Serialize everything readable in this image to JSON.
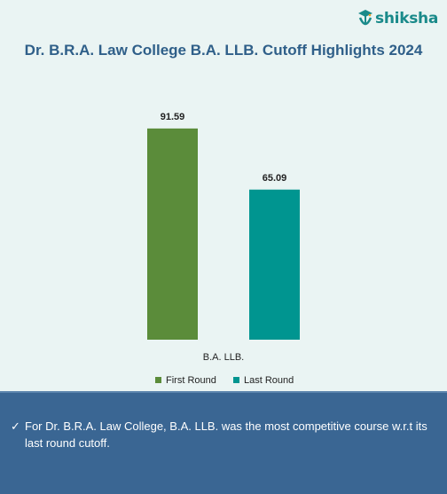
{
  "logo": {
    "text": "shiksha"
  },
  "chart_data": {
    "type": "bar",
    "title": "Dr. B.R.A. Law College B.A. LLB. Cutoff Highlights 2024",
    "categories": [
      "B.A. LLB."
    ],
    "series": [
      {
        "name": "First Round",
        "values": [
          91.59
        ],
        "color": "#5b8c3a"
      },
      {
        "name": "Last Round",
        "values": [
          65.09
        ],
        "color": "#009590"
      }
    ],
    "xlabel": "",
    "ylabel": "",
    "ylim": [
      0,
      100
    ],
    "grid": false,
    "legend": "bottom",
    "data_labels": true
  },
  "note": {
    "icon": "check-icon",
    "text": "For Dr. B.R.A. Law College, B.A. LLB. was the most competitive course w.r.t its last round cutoff."
  }
}
